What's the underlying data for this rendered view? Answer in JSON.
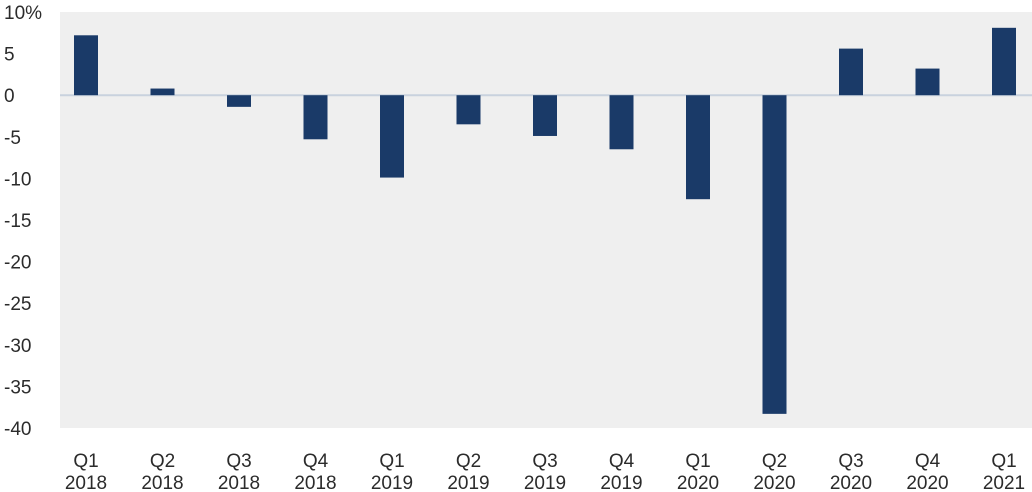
{
  "chart_data": {
    "type": "bar",
    "categories": [
      {
        "quarter": "Q1",
        "year": "2018"
      },
      {
        "quarter": "Q2",
        "year": "2018"
      },
      {
        "quarter": "Q3",
        "year": "2018"
      },
      {
        "quarter": "Q4",
        "year": "2018"
      },
      {
        "quarter": "Q1",
        "year": "2019"
      },
      {
        "quarter": "Q2",
        "year": "2019"
      },
      {
        "quarter": "Q3",
        "year": "2019"
      },
      {
        "quarter": "Q4",
        "year": "2019"
      },
      {
        "quarter": "Q1",
        "year": "2020"
      },
      {
        "quarter": "Q2",
        "year": "2020"
      },
      {
        "quarter": "Q3",
        "year": "2020"
      },
      {
        "quarter": "Q4",
        "year": "2020"
      },
      {
        "quarter": "Q1",
        "year": "2021"
      }
    ],
    "values": [
      7.2,
      0.8,
      -1.4,
      -5.3,
      -9.9,
      -3.5,
      -4.9,
      -6.5,
      -12.5,
      -38.3,
      5.6,
      3.2,
      8.1
    ],
    "ylim": [
      -40,
      10
    ],
    "yticks": [
      10,
      5,
      0,
      -5,
      -10,
      -15,
      -20,
      -25,
      -30,
      -35,
      -40
    ],
    "ytick_labels": [
      "10%",
      "5",
      "0",
      "-5",
      "-10",
      "-15",
      "-20",
      "-25",
      "-30",
      "-35",
      "-40"
    ],
    "title": "",
    "xlabel": "",
    "ylabel": "",
    "grid": false,
    "legend": "none",
    "colors": {
      "bar": "#1a3a68",
      "plot_background": "#efefef",
      "zero_line": "#c9d2de",
      "text": "#2b2b2b"
    }
  }
}
